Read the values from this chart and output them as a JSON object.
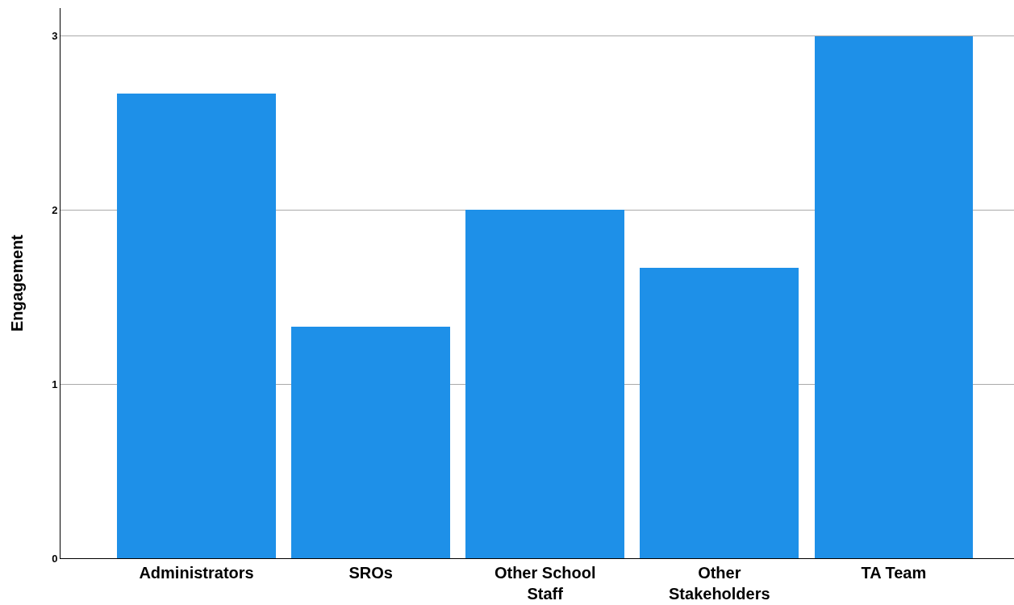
{
  "chart_data": {
    "type": "bar",
    "ylabel": "Engagement",
    "categories": [
      "Administrators",
      "SROs",
      "Other School Staff",
      "Other Stakeholders",
      "TA Team"
    ],
    "values": [
      2.67,
      1.33,
      2.0,
      1.67,
      3.0
    ],
    "color": "#1e90e8",
    "ylim": [
      0,
      3.16
    ],
    "yticks": [
      0,
      1,
      2,
      3
    ],
    "grid": "y"
  }
}
